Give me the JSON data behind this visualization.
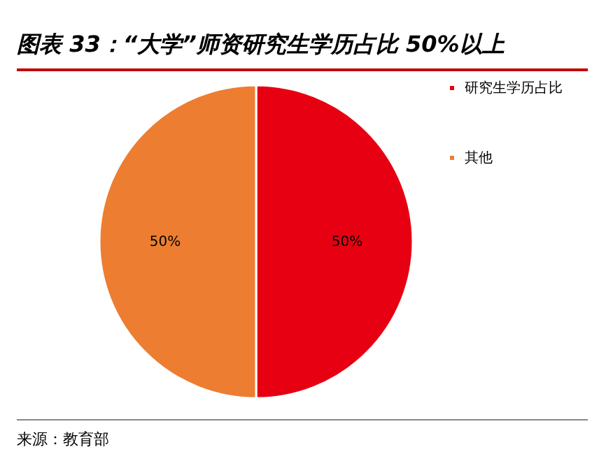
{
  "chart_data": {
    "type": "pie",
    "title": "图表 33：“大学”师资研究生学历占比 50%以上",
    "categories": [
      "研究生学历占比",
      "其他"
    ],
    "values": [
      50,
      50
    ],
    "colors": [
      "#e60012",
      "#ed7d31"
    ],
    "value_labels": [
      "50%",
      "50%"
    ],
    "legend": "right",
    "annotations": [
      "来源：教育部"
    ]
  }
}
